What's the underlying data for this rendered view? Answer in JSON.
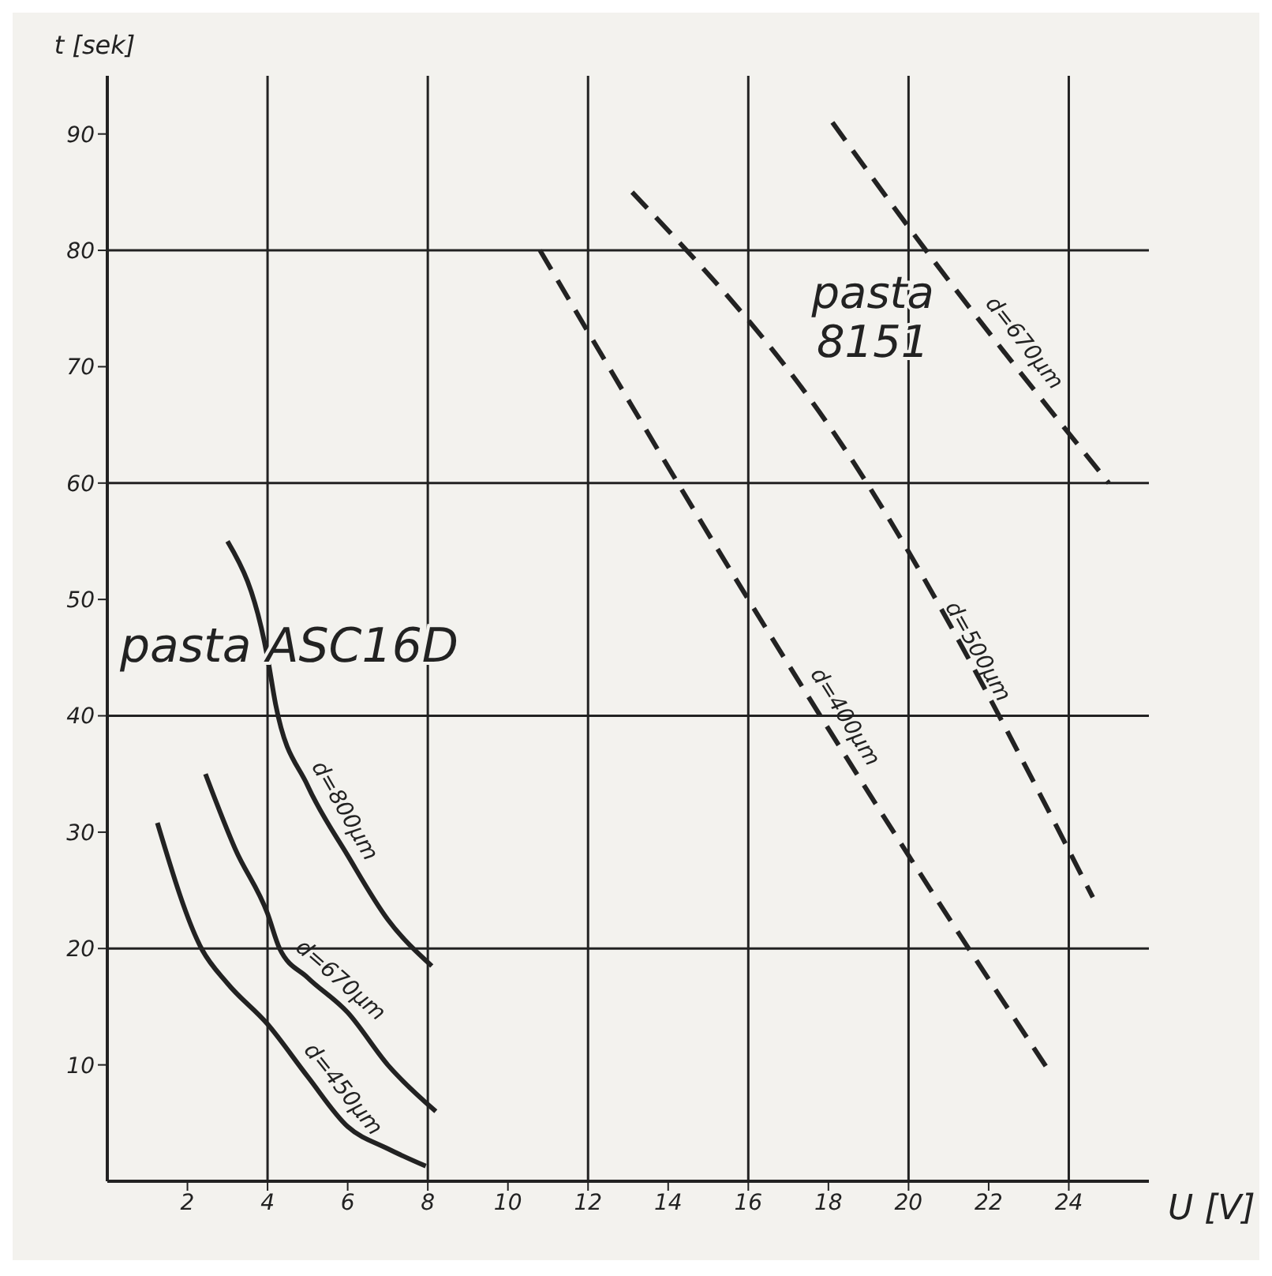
{
  "chart_data": {
    "type": "line",
    "xlabel": "U [V]",
    "ylabel": "t [sek]",
    "xlim": [
      0,
      26
    ],
    "ylim": [
      0,
      95
    ],
    "xticks": [
      2,
      4,
      6,
      8,
      10,
      12,
      14,
      16,
      18,
      20,
      22,
      24
    ],
    "yticks": [
      10,
      20,
      30,
      40,
      50,
      60,
      70,
      80,
      90
    ],
    "grid": true,
    "marker": "none",
    "line_style": "solid",
    "series": [
      {
        "name": "d=800µm",
        "color": "#222222",
        "x": [
          3,
          4,
          4.2,
          5,
          6,
          7,
          8.1
        ],
        "values": [
          55,
          45,
          41,
          34,
          28,
          22.5,
          18.5
        ]
      },
      {
        "name": "d=670µm",
        "color": "#222222",
        "x": [
          2.45,
          3.2,
          4,
          4.3,
          5,
          6,
          7,
          8.2
        ],
        "values": [
          35,
          28.5,
          23,
          20,
          17.5,
          14.5,
          10,
          6
        ]
      },
      {
        "name": "d=450µm",
        "color": "#222222",
        "x": [
          1.25,
          2.35,
          3,
          4,
          5,
          6,
          7,
          7.95
        ],
        "values": [
          30.8,
          20,
          17,
          13.5,
          9,
          4.7,
          2.8,
          1.3
        ]
      },
      {
        "name": "d=400µm",
        "color": "#222222",
        "line_style": "dashed",
        "x": [
          10.8,
          16,
          20,
          23.5
        ],
        "values": [
          80,
          50,
          28,
          9.5
        ]
      },
      {
        "name": "d=500µm",
        "color": "#222222",
        "line_style": "dashed",
        "x": [
          13.1,
          18,
          24.6
        ],
        "values": [
          85,
          65,
          24.4
        ]
      },
      {
        "name": "d=670µm",
        "color": "#222222",
        "line_style": "dashed",
        "x": [
          18.1,
          20,
          25
        ],
        "values": [
          91,
          82,
          60
        ]
      }
    ],
    "annotations": [
      "pasta ASC16D",
      "pasta 8151"
    ]
  }
}
